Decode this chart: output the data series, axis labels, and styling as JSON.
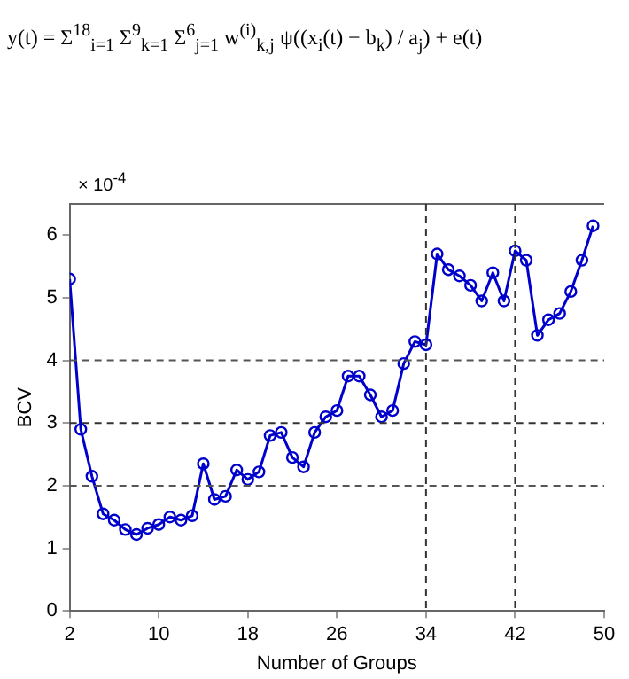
{
  "chart_data": {
    "type": "line",
    "xlabel": "Number of Groups",
    "ylabel": "BCV",
    "annotations": [
      "y(t) = Σ$^{18}$$_{i=1}$ Σ$^{9}$$_{k=1}$ Σ$^{6}$$_{j=1}$ w$^{(i)}$$_{k,j}$ ψ((x$_{i}$(t) − b$_{k}$) / a$_{j}$) + e(t)",
      "× 10$^{-4}$"
    ],
    "x": [
      2,
      3,
      4,
      5,
      6,
      7,
      8,
      9,
      10,
      11,
      12,
      13,
      14,
      15,
      16,
      17,
      18,
      19,
      20,
      21,
      22,
      23,
      24,
      25,
      26,
      27,
      28,
      29,
      30,
      31,
      32,
      33,
      34,
      35,
      36,
      37,
      38,
      39,
      40,
      41,
      42,
      43,
      44,
      45,
      46,
      47,
      48,
      49
    ],
    "series": [
      {
        "color": "#0000cc",
        "values": [
          5.3,
          2.9,
          2.15,
          1.55,
          1.45,
          1.3,
          1.22,
          1.32,
          1.38,
          1.5,
          1.45,
          1.52,
          2.35,
          1.78,
          1.83,
          2.25,
          2.1,
          2.22,
          2.8,
          2.85,
          2.45,
          2.3,
          2.85,
          3.1,
          3.2,
          3.75,
          3.75,
          3.45,
          3.1,
          3.2,
          3.95,
          4.3,
          4.25,
          5.7,
          5.45,
          5.35,
          5.2,
          4.95,
          5.4,
          4.95,
          5.75,
          5.6,
          4.4,
          4.65,
          4.75,
          5.1,
          5.6,
          6.15
        ]
      }
    ],
    "xlim": [
      2,
      50
    ],
    "xticks": [
      2,
      10,
      18,
      26,
      34,
      42,
      50
    ],
    "ylim": [
      0,
      6.5
    ],
    "yticks": [
      0,
      1,
      2,
      3,
      4,
      5,
      6
    ],
    "ref_lines": [
      {
        "axis": "y",
        "value": 2,
        "color": "#555555",
        "line_style": "dashed"
      },
      {
        "axis": "y",
        "value": 3,
        "color": "#333333",
        "line_style": "dashed"
      },
      {
        "axis": "y",
        "value": 4,
        "color": "#555555",
        "line_style": "dashed"
      },
      {
        "axis": "x",
        "value": 34,
        "color": "#333333",
        "line_style": "dashed"
      },
      {
        "axis": "x",
        "value": 42,
        "color": "#333333",
        "line_style": "dashed"
      }
    ],
    "marker": "circle",
    "line_style": "solid",
    "grid": false,
    "legend": false
  }
}
